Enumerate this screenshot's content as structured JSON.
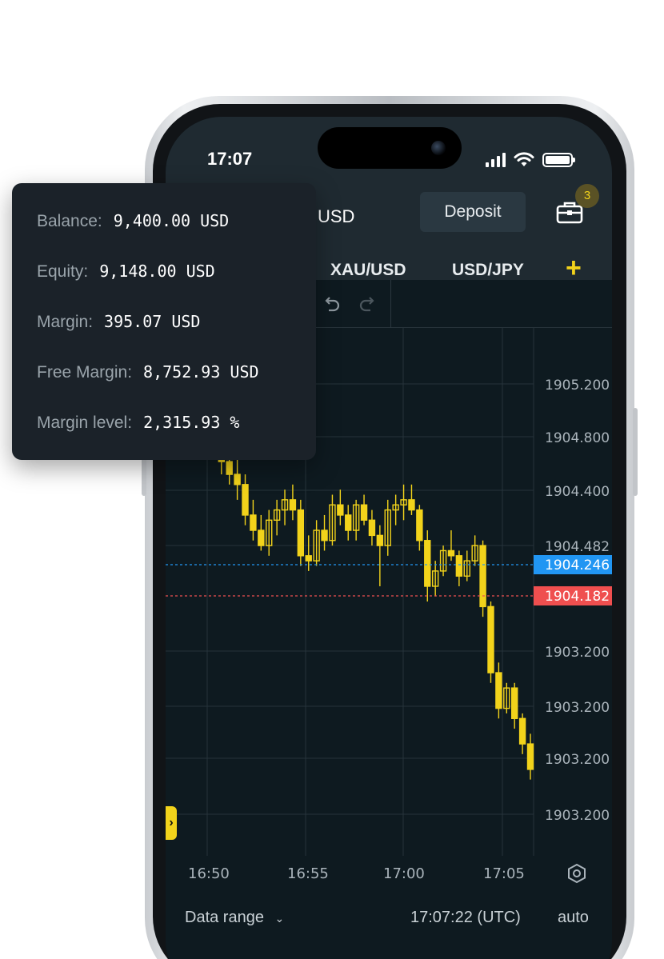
{
  "status_bar": {
    "time": "17:07"
  },
  "header": {
    "currency": "USD",
    "deposit_label": "Deposit",
    "positions_badge": "3"
  },
  "tabs": [
    {
      "label": "XAU/USD"
    },
    {
      "label": "USD/JPY"
    }
  ],
  "add_tab_icon": "plus-icon",
  "account_summary": [
    {
      "label": "Balance:",
      "value": "9,400.00 USD"
    },
    {
      "label": "Equity:",
      "value": "9,148.00 USD"
    },
    {
      "label": "Margin:",
      "value": "395.07 USD"
    },
    {
      "label": "Free Margin:",
      "value": "8,752.93 USD"
    },
    {
      "label": "Margin level:",
      "value": "2,315.93 %"
    }
  ],
  "chart_data": {
    "type": "candlestick",
    "price_labels": [
      "1905.200",
      "1904.800",
      "1904.400",
      "1904.482",
      "1903.200",
      "1903.200",
      "1903.200",
      "1903.200"
    ],
    "bid": {
      "label": "1904.246",
      "color": "#2196f3"
    },
    "ask": {
      "label": "1904.182",
      "color": "#ef4f4f"
    },
    "candle_color": "#f2d31b",
    "time_labels": [
      "16:50",
      "16:55",
      "17:00",
      "17:05"
    ],
    "candles": [
      [
        1904.62,
        1904.66,
        1904.5,
        1904.56
      ],
      [
        1904.56,
        1904.6,
        1904.46,
        1904.52
      ],
      [
        1904.52,
        1904.56,
        1904.4,
        1904.45
      ],
      [
        1904.45,
        1904.5,
        1904.36,
        1904.4
      ],
      [
        1904.4,
        1904.48,
        1904.3,
        1904.36
      ],
      [
        1904.36,
        1904.4,
        1904.2,
        1904.24
      ],
      [
        1904.24,
        1904.3,
        1904.14,
        1904.18
      ],
      [
        1904.18,
        1904.24,
        1904.1,
        1904.12
      ],
      [
        1904.12,
        1904.26,
        1904.08,
        1904.22
      ],
      [
        1904.22,
        1904.3,
        1904.16,
        1904.26
      ],
      [
        1904.26,
        1904.34,
        1904.2,
        1904.3
      ],
      [
        1904.3,
        1904.36,
        1904.22,
        1904.26
      ],
      [
        1904.26,
        1904.3,
        1904.04,
        1904.08
      ],
      [
        1904.08,
        1904.16,
        1904.02,
        1904.06
      ],
      [
        1904.06,
        1904.22,
        1904.04,
        1904.18
      ],
      [
        1904.18,
        1904.24,
        1904.1,
        1904.14
      ],
      [
        1904.14,
        1904.32,
        1904.12,
        1904.28
      ],
      [
        1904.28,
        1904.34,
        1904.2,
        1904.24
      ],
      [
        1904.24,
        1904.28,
        1904.14,
        1904.18
      ],
      [
        1904.18,
        1904.3,
        1904.14,
        1904.28
      ],
      [
        1904.28,
        1904.32,
        1904.2,
        1904.22
      ],
      [
        1904.22,
        1904.26,
        1904.12,
        1904.16
      ],
      [
        1904.16,
        1904.2,
        1903.96,
        1904.12
      ],
      [
        1904.12,
        1904.3,
        1904.08,
        1904.26
      ],
      [
        1904.26,
        1904.32,
        1904.2,
        1904.28
      ],
      [
        1904.28,
        1904.36,
        1904.22,
        1904.3
      ],
      [
        1904.3,
        1904.36,
        1904.24,
        1904.26
      ],
      [
        1904.26,
        1904.28,
        1904.1,
        1904.14
      ],
      [
        1904.14,
        1904.18,
        1903.9,
        1903.96
      ],
      [
        1903.96,
        1904.06,
        1903.92,
        1904.02
      ],
      [
        1904.02,
        1904.12,
        1904.0,
        1904.1
      ],
      [
        1904.1,
        1904.18,
        1904.06,
        1904.08
      ],
      [
        1904.08,
        1904.1,
        1903.96,
        1904.0
      ],
      [
        1904.0,
        1904.1,
        1903.98,
        1904.06
      ],
      [
        1904.06,
        1904.16,
        1904.04,
        1904.12
      ],
      [
        1904.12,
        1904.14,
        1903.84,
        1903.88
      ],
      [
        1903.88,
        1903.9,
        1903.58,
        1903.62
      ],
      [
        1903.62,
        1903.66,
        1903.44,
        1903.48
      ],
      [
        1903.48,
        1903.58,
        1903.46,
        1903.56
      ],
      [
        1903.56,
        1903.58,
        1903.4,
        1903.44
      ],
      [
        1903.44,
        1903.46,
        1903.3,
        1903.34
      ],
      [
        1903.34,
        1903.38,
        1903.2,
        1903.24
      ]
    ]
  },
  "bottom_bar": {
    "data_range_label": "Data range",
    "clock": "17:07:22 (UTC)",
    "scale_label": "auto"
  }
}
